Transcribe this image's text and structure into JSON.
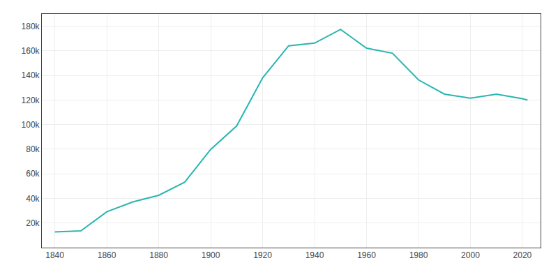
{
  "chart_data": {
    "type": "line",
    "x": [
      1840,
      1850,
      1860,
      1870,
      1880,
      1890,
      1900,
      1910,
      1920,
      1930,
      1940,
      1950,
      1960,
      1970,
      1980,
      1990,
      2000,
      2010,
      2020,
      2022
    ],
    "values": [
      12793,
      13555,
      29152,
      37180,
      42551,
      53230,
      79850,
      98915,
      138036,
      164072,
      166267,
      177397,
      162178,
      158017,
      136392,
      124775,
      121578,
      124775,
      121054,
      120000
    ],
    "color": "#2ab5b0",
    "xlim": [
      1835,
      2027
    ],
    "xticks": [
      1840,
      1860,
      1880,
      1900,
      1920,
      1940,
      1960,
      1980,
      2000,
      2020
    ],
    "ylim": [
      0,
      190000
    ],
    "yticks": [
      {
        "value": 20000,
        "label": "20k"
      },
      {
        "value": 40000,
        "label": "40k"
      },
      {
        "value": 60000,
        "label": "60k"
      },
      {
        "value": 80000,
        "label": "80k"
      },
      {
        "value": 100000,
        "label": "100k"
      },
      {
        "value": 120000,
        "label": "120k"
      },
      {
        "value": 140000,
        "label": "140k"
      },
      {
        "value": 160000,
        "label": "160k"
      },
      {
        "value": 180000,
        "label": "180k"
      }
    ],
    "grid": true
  }
}
